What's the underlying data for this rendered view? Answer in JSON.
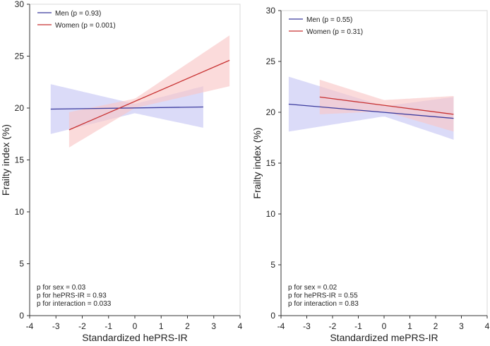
{
  "chart_data": [
    {
      "type": "line",
      "xlabel": "Standardized hePRS-IR",
      "ylabel": "Frailty index (%)",
      "xlim": [
        -4,
        4
      ],
      "ylim": [
        0,
        30
      ],
      "xticks": [
        -4,
        -3,
        -2,
        -1,
        0,
        1,
        2,
        3,
        4
      ],
      "yticks": [
        0,
        5,
        10,
        15,
        20,
        25,
        30
      ],
      "series": [
        {
          "name": "Men",
          "legend_label": "Men (p = 0.93)",
          "color": "#3b3b9e",
          "band_color": "#c8c8f5",
          "line": [
            [
              -3.2,
              19.9
            ],
            [
              2.6,
              20.1
            ]
          ],
          "ci_lower": [
            [
              -3.2,
              17.5
            ],
            [
              0.0,
              19.5
            ],
            [
              2.6,
              18.1
            ]
          ],
          "ci_upper": [
            [
              -3.2,
              22.3
            ],
            [
              0.0,
              20.4
            ],
            [
              2.6,
              22.1
            ]
          ]
        },
        {
          "name": "Women",
          "legend_label": "Women (p = 0.001)",
          "color": "#c83232",
          "band_color": "#f9c8c8",
          "line": [
            [
              -2.5,
              17.9
            ],
            [
              3.6,
              24.6
            ]
          ],
          "ci_lower": [
            [
              -2.5,
              16.2
            ],
            [
              0.0,
              20.0
            ],
            [
              3.6,
              22.1
            ]
          ],
          "ci_upper": [
            [
              -2.5,
              19.6
            ],
            [
              0.0,
              20.9
            ],
            [
              3.6,
              27.0
            ]
          ]
        }
      ],
      "annotations": [
        "p for sex = 0.03",
        "p for hePRS-IR = 0.93",
        "p for interaction = 0.033"
      ]
    },
    {
      "type": "line",
      "xlabel": "Standardized mePRS-IR",
      "ylabel": "Frailty index (%)",
      "xlim": [
        -4,
        4
      ],
      "ylim": [
        0,
        30
      ],
      "xticks": [
        -4,
        -3,
        -2,
        -1,
        0,
        1,
        2,
        3,
        4
      ],
      "yticks": [
        0,
        5,
        10,
        15,
        20,
        25,
        30
      ],
      "series": [
        {
          "name": "Men",
          "legend_label": "Men (p = 0.55)",
          "color": "#3b3b9e",
          "band_color": "#c8c8f5",
          "line": [
            [
              -3.7,
              20.8
            ],
            [
              2.7,
              19.4
            ]
          ],
          "ci_lower": [
            [
              -3.7,
              18.1
            ],
            [
              0.0,
              19.6
            ],
            [
              2.7,
              17.3
            ]
          ],
          "ci_upper": [
            [
              -3.7,
              23.5
            ],
            [
              0.0,
              20.6
            ],
            [
              2.7,
              21.5
            ]
          ]
        },
        {
          "name": "Women",
          "legend_label": "Women (p = 0.31)",
          "color": "#c83232",
          "band_color": "#f9c8c8",
          "line": [
            [
              -2.5,
              21.5
            ],
            [
              2.7,
              19.8
            ]
          ],
          "ci_lower": [
            [
              -2.5,
              19.8
            ],
            [
              0.0,
              20.1
            ],
            [
              2.7,
              18.1
            ]
          ],
          "ci_upper": [
            [
              -2.5,
              23.2
            ],
            [
              0.0,
              21.2
            ],
            [
              2.7,
              21.6
            ]
          ]
        }
      ],
      "annotations": [
        "p for sex = 0.02",
        "p for hePRS-IR = 0.55",
        "p for interaction = 0.83"
      ]
    }
  ]
}
